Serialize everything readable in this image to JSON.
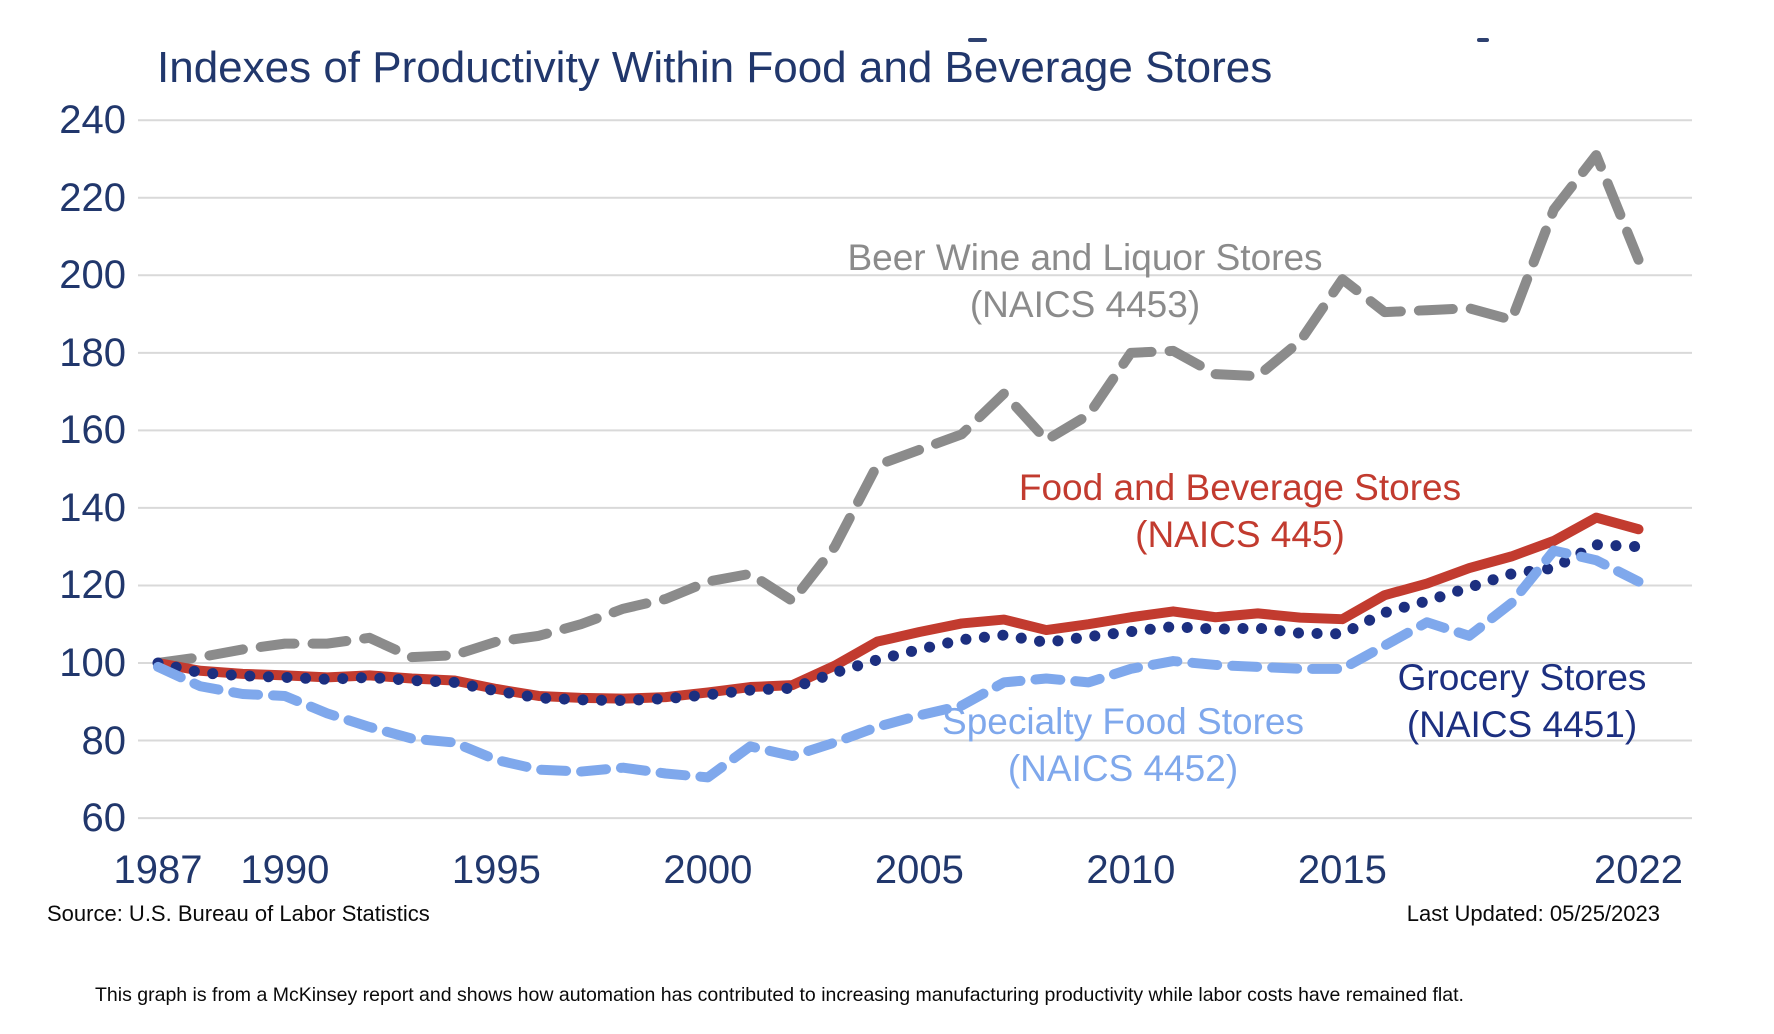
{
  "title": "Indexes of Productivity Within Food and Beverage Stores",
  "source_note": "Source: U.S. Bureau of Labor Statistics",
  "last_updated": "Last Updated: 05/25/2023",
  "caption": "This graph is from a McKinsey report  and shows how automation has contributed to increasing manufacturing productivity while labor costs have remained flat.",
  "colors": {
    "title_and_axis": "#21376c",
    "gridline": "#d9d9d9",
    "beer_wine_liquor": "#8b8b8b",
    "food_and_beverage": "#c23b2f",
    "grocery": "#1c2f80",
    "specialty_food": "#7fa8ec",
    "footnote_text": "#0a0a0a"
  },
  "chart_data": {
    "type": "line",
    "title": "Indexes of Productivity Within Food and Beverage Stores",
    "xlabel": "",
    "ylabel": "",
    "x": [
      1987,
      1988,
      1989,
      1990,
      1991,
      1992,
      1993,
      1994,
      1995,
      1996,
      1997,
      1998,
      1999,
      2000,
      2001,
      2002,
      2003,
      2004,
      2005,
      2006,
      2007,
      2008,
      2009,
      2010,
      2011,
      2012,
      2013,
      2014,
      2015,
      2016,
      2017,
      2018,
      2019,
      2020,
      2021,
      2022
    ],
    "x_ticks": [
      1987,
      1990,
      1995,
      2000,
      2005,
      2010,
      2015,
      2022
    ],
    "y_ticks": [
      60,
      80,
      100,
      120,
      140,
      160,
      180,
      200,
      220,
      240
    ],
    "ylim": [
      60,
      240
    ],
    "grid": "horizontal",
    "legend_position": "inline-annotations",
    "series": [
      {
        "name": "Beer Wine and Liquor Stores",
        "label2": "(NAICS 4453)",
        "color": "#8b8b8b",
        "style": "long-dash",
        "values": [
          100,
          101.5,
          103.5,
          105,
          105,
          106.5,
          101.5,
          102,
          105.5,
          107,
          110,
          114,
          116.5,
          121,
          123,
          116,
          130,
          151,
          155,
          159,
          169.5,
          157.5,
          164,
          180,
          180.5,
          174.5,
          174,
          183,
          199,
          190.5,
          191,
          191.5,
          188.5,
          217,
          231,
          204
        ]
      },
      {
        "name": "Food and Beverage Stores",
        "label2": "(NAICS 445)",
        "color": "#c23b2f",
        "style": "solid",
        "values": [
          100,
          98,
          97.2,
          96.8,
          96.3,
          96.8,
          96,
          95.5,
          93.3,
          91.5,
          91,
          90.8,
          91.2,
          92.4,
          93.8,
          94.3,
          99.3,
          105.5,
          108,
          110.2,
          111.2,
          108.5,
          110,
          111.8,
          113.3,
          111.8,
          112.8,
          111.7,
          111.3,
          117.5,
          120.5,
          124.5,
          127.5,
          131.5,
          137.5,
          134.5
        ]
      },
      {
        "name": "Grocery Stores",
        "label2": "(NAICS 4451)",
        "color": "#1c2f80",
        "style": "dotted",
        "values": [
          100,
          97.5,
          96.7,
          96.3,
          95.8,
          96.3,
          95.5,
          95,
          92.8,
          91,
          90.5,
          90.3,
          90.8,
          91.8,
          93,
          93.5,
          97.5,
          100.8,
          103.5,
          106,
          107.2,
          105.3,
          106.8,
          108.1,
          109.4,
          108.7,
          109,
          107.7,
          107.5,
          113,
          116,
          119.5,
          123,
          124.5,
          130.5,
          130
        ]
      },
      {
        "name": "Specialty Food Stores",
        "label2": "(NAICS 4452)",
        "color": "#7fa8ec",
        "style": "dash",
        "values": [
          99,
          94,
          92,
          91.5,
          87,
          83.5,
          80.5,
          79.5,
          75,
          72.5,
          72,
          73,
          71.5,
          70.5,
          78.5,
          76,
          79.5,
          83.5,
          86.5,
          89,
          95,
          96,
          95,
          98.5,
          100.5,
          99.5,
          99,
          98.5,
          98.5,
          104.5,
          110.5,
          107,
          115.5,
          129,
          126.5,
          121
        ]
      }
    ]
  }
}
